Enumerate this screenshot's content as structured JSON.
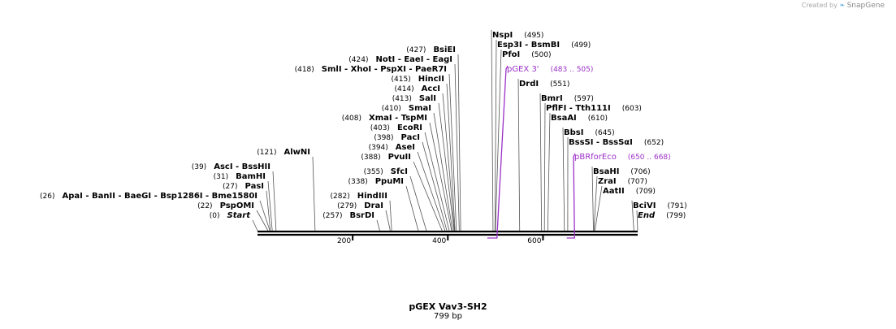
{
  "watermark": {
    "prefix": "Created by",
    "brand": "SnapGene"
  },
  "map_title": "pGEX Vav3-SH2",
  "map_length_label": "799 bp",
  "colors": {
    "line": "#555555",
    "backbone": "#000000",
    "feature": "#9b30c8"
  },
  "ticks": [
    {
      "value": 200,
      "label": "200"
    },
    {
      "value": 400,
      "label": "400"
    },
    {
      "value": 600,
      "label": "600"
    }
  ],
  "labels": [
    {
      "pos": "(0)",
      "text": "Start",
      "italic": true,
      "site": 0
    },
    {
      "pos": "(22)",
      "text": "PspOMI",
      "site": 22
    },
    {
      "pos": "(26)",
      "text": "ApaI   -  BanII   -  BaeGI   -  Bsp1286I   -  Bme1580I",
      "site": 26
    },
    {
      "pos": "(27)",
      "text": "PasI",
      "site": 27
    },
    {
      "pos": "(31)",
      "text": "BamHI",
      "site": 31
    },
    {
      "pos": "(39)",
      "text": "AscI   -  BssHII",
      "site": 39
    },
    {
      "pos": "(121)",
      "text": "AlwNI",
      "site": 121
    },
    {
      "pos": "(257)",
      "text": "BsrDI",
      "site": 257
    },
    {
      "pos": "(279)",
      "text": "DraI",
      "site": 279
    },
    {
      "pos": "(282)",
      "text": "HindIII",
      "site": 282
    },
    {
      "pos": "(338)",
      "text": "PpuMI",
      "site": 338
    },
    {
      "pos": "(355)",
      "text": "SfcI",
      "site": 355
    },
    {
      "pos": "(388)",
      "text": "PvuII",
      "site": 388
    },
    {
      "pos": "(394)",
      "text": "AseI",
      "site": 394
    },
    {
      "pos": "(398)",
      "text": "PacI",
      "site": 398
    },
    {
      "pos": "(403)",
      "text": "EcoRI",
      "site": 403
    },
    {
      "pos": "(408)",
      "text": "XmaI   -  TspMI",
      "site": 408
    },
    {
      "pos": "(410)",
      "text": "SmaI",
      "site": 410
    },
    {
      "pos": "(413)",
      "text": "SalI",
      "site": 413
    },
    {
      "pos": "(414)",
      "text": "AccI",
      "site": 414
    },
    {
      "pos": "(415)",
      "text": "HincII",
      "site": 415
    },
    {
      "pos": "(418)",
      "text": "SmlI   -  XhoI   -  PspXI   -  PaeR7I",
      "site": 418
    },
    {
      "pos": "(424)",
      "text": "NotI   -  EaeI   -  EagI",
      "site": 424
    },
    {
      "pos": "(427)",
      "text": "BsiEI",
      "site": 427
    },
    {
      "pos": "(495)",
      "text": "NspI",
      "site": 495
    },
    {
      "pos": "(499)",
      "text": "Esp3I   -  BsmBI",
      "site": 499
    },
    {
      "pos": "(500)",
      "text": "PfoI",
      "site": 500
    },
    {
      "pos": "(483 .. 505)",
      "text": "pGEX 3'",
      "feature": true,
      "site": 505
    },
    {
      "pos": "(551)",
      "text": "DrdI",
      "site": 551
    },
    {
      "pos": "(597)",
      "text": "BmrI",
      "site": 597
    },
    {
      "pos": "(603)",
      "text": "PflFI   -  Tth111I",
      "site": 603
    },
    {
      "pos": "(610)",
      "text": "BsaAI",
      "site": 610
    },
    {
      "pos": "(645)",
      "text": "BbsI",
      "site": 645
    },
    {
      "pos": "(652)",
      "text": "BssSI   -  BssSαI",
      "site": 652
    },
    {
      "pos": "(650 .. 668)",
      "text": "pBRforEco",
      "feature": true,
      "site": 668
    },
    {
      "pos": "(706)",
      "text": "BsaHI",
      "site": 706
    },
    {
      "pos": "(707)",
      "text": "ZraI",
      "site": 707
    },
    {
      "pos": "(709)",
      "text": "AatII",
      "site": 709
    },
    {
      "pos": "(791)",
      "text": "BciVI",
      "site": 791
    },
    {
      "pos": "(799)",
      "text": "End",
      "italic": true,
      "site": 799
    }
  ],
  "features": [
    {
      "name": "pGEX 3'",
      "start": 483,
      "end": 505
    },
    {
      "name": "pBRforEco",
      "start": 650,
      "end": 668
    }
  ]
}
